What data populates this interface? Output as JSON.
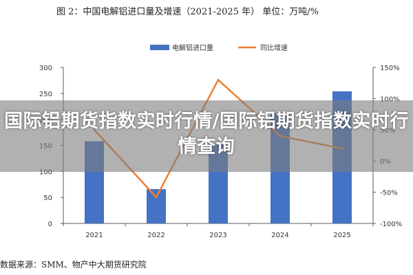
{
  "page": {
    "title": "图 2：中国电解铝进口量及增速（2021-2025 年）   单位：万吨/%",
    "source": "数据来源：SMM、物产中大期货研究院",
    "banner": "国际铝期货指数实时行情/国际铝期货指数实时行情查询"
  },
  "colors": {
    "bar": "#4472C4",
    "line": "#ED7D31",
    "axis": "#595959",
    "banner": "#7f7f7f"
  },
  "chart_data": {
    "type": "bar",
    "categories": [
      "2021",
      "2022",
      "2023",
      "2024",
      "2025"
    ],
    "series": [
      {
        "name": "电解铝进口量",
        "type": "bar",
        "axis": "left",
        "values": [
          158,
          66,
          153,
          212,
          254
        ]
      },
      {
        "name": "同比增速",
        "type": "line",
        "axis": "right",
        "values": [
          50,
          -58,
          130,
          40,
          20
        ]
      }
    ],
    "y_left": {
      "min": 0,
      "max": 300,
      "ticks": [
        "0",
        "50",
        "100",
        "150",
        "200",
        "250",
        "300"
      ]
    },
    "y_right": {
      "min": -100,
      "max": 150,
      "ticks": [
        "-100%",
        "-50%",
        "0%",
        "50%",
        "100%",
        "150%"
      ]
    },
    "legend": "top",
    "grid": false
  }
}
